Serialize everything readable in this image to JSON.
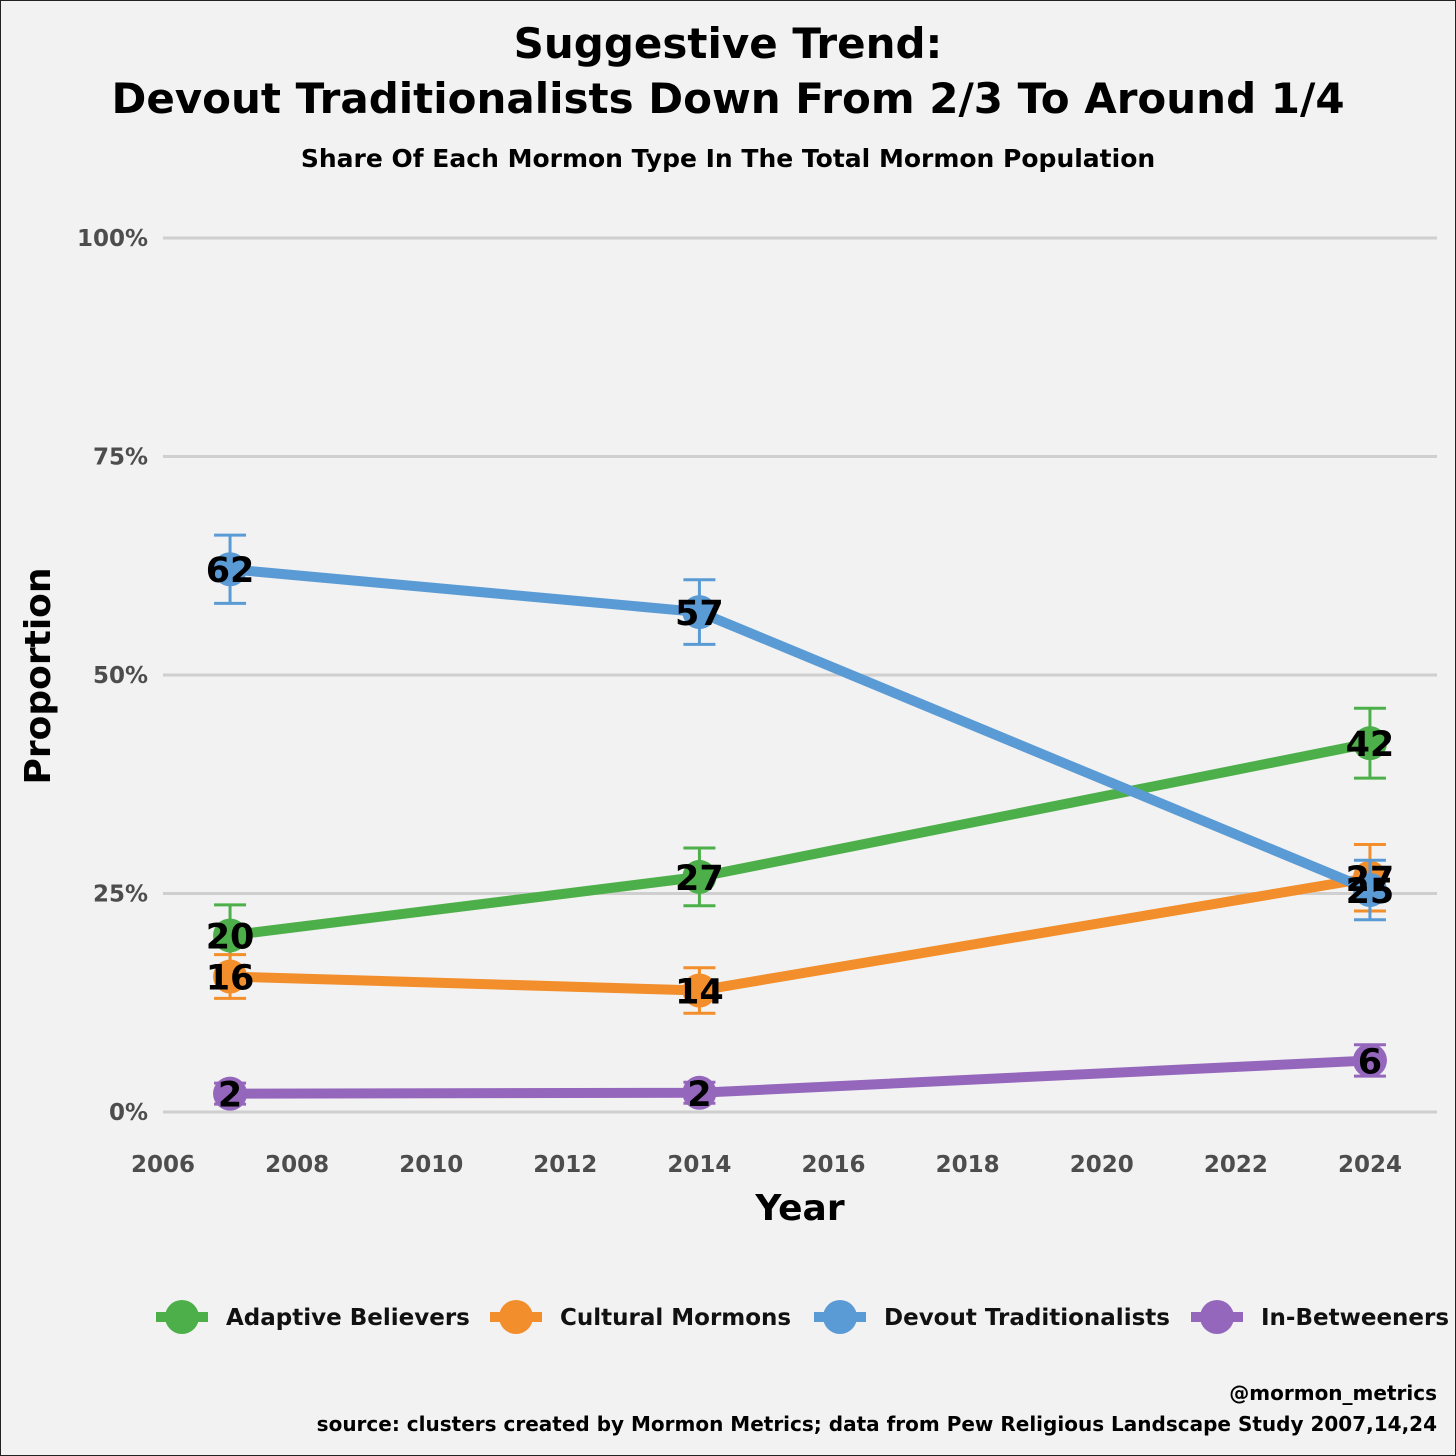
{
  "chart_data": {
    "type": "line",
    "title": [
      "Suggestive Trend:",
      "Devout Traditionalists Down From 2/3 To Around 1/4"
    ],
    "subtitle": "Share Of Each Mormon Type In The Total Mormon Population",
    "xlabel": "Year",
    "ylabel": "Proportion",
    "xlim": [
      2006,
      2025
    ],
    "ylim": [
      0,
      100
    ],
    "x_ticks": [
      2006,
      2008,
      2010,
      2012,
      2014,
      2016,
      2018,
      2020,
      2022,
      2024
    ],
    "y_ticks": [
      0,
      25,
      50,
      75,
      100
    ],
    "y_tick_labels": [
      "0%",
      "25%",
      "50%",
      "75%",
      "100%"
    ],
    "grid": "horizontal",
    "x": [
      2007,
      2014,
      2024
    ],
    "series": [
      {
        "name": "Adaptive Believers",
        "color": "#4daf4a",
        "values": [
          20.2,
          26.9,
          42.2
        ],
        "errors": [
          3.5,
          3.3,
          4.0
        ],
        "labels": [
          "20",
          "27",
          "42"
        ]
      },
      {
        "name": "Cultural Mormons",
        "color": "#f28e2b",
        "values": [
          15.5,
          13.9,
          26.8
        ],
        "errors": [
          2.5,
          2.6,
          3.8
        ],
        "labels": [
          "16",
          "14",
          "27"
        ]
      },
      {
        "name": "Devout Traditionalists",
        "color": "#5b9bd5",
        "values": [
          62.1,
          57.2,
          25.4
        ],
        "errors": [
          3.9,
          3.7,
          3.4
        ],
        "labels": [
          "62",
          "57",
          "25"
        ]
      },
      {
        "name": "In-Betweeners",
        "color": "#9467bd",
        "values": [
          2.1,
          2.2,
          5.9
        ],
        "errors": [
          1.2,
          1.2,
          1.8
        ],
        "labels": [
          "2",
          "2",
          "6"
        ]
      }
    ],
    "legend_position": "bottom",
    "caption": [
      "@mormon_metrics",
      "source: clusters created by Mormon Metrics; data from Pew Religious Landscape Study 2007,14,24"
    ]
  }
}
